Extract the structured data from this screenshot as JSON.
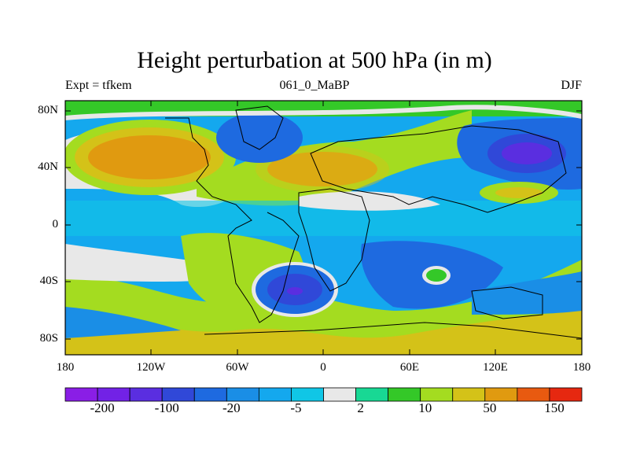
{
  "title": "Height perturbation at 500 hPa (in m)",
  "subtitle_left": "Expt = tfkem",
  "subtitle_center": "061_0_MaBP",
  "subtitle_right": "DJF",
  "lat_labels": [
    "80N",
    "40N",
    "0",
    "40S",
    "80S"
  ],
  "lon_labels": [
    "180",
    "120W",
    "60W",
    "0",
    "60E",
    "120E",
    "180"
  ],
  "colorbar": {
    "labels": [
      "-200",
      "-100",
      "-20",
      "-5",
      "2",
      "10",
      "50",
      "150"
    ],
    "colors": [
      "#8a1ee6",
      "#7222e6",
      "#5a2ee0",
      "#3048d8",
      "#1e6ae0",
      "#1a8ee6",
      "#14a8ee",
      "#10c6e6",
      "#e8e8e8",
      "#18d894",
      "#34c828",
      "#a4dc20",
      "#d4c218",
      "#e09a10",
      "#e85a10",
      "#e62810"
    ]
  },
  "chart_data": {
    "type": "heatmap",
    "title": "Height perturbation at 500 hPa (in m)",
    "xlabel": "",
    "ylabel": "",
    "xlim": [
      -180,
      180
    ],
    "ylim": [
      -90,
      90
    ],
    "x_ticks": [
      "180",
      "120W",
      "60W",
      "0",
      "60E",
      "120E",
      "180"
    ],
    "y_ticks": [
      "80N",
      "40N",
      "0",
      "40S",
      "80S"
    ],
    "colorbar_labels": [
      "-200",
      "-100",
      "-20",
      "-5",
      "2",
      "10",
      "50",
      "150"
    ],
    "features": [
      {
        "lon": -135,
        "lat": 48,
        "value_level": "50"
      },
      {
        "lon": -10,
        "lat": 38,
        "value_level": "50"
      },
      {
        "lon": 135,
        "lat": 48,
        "value_level": "-200"
      },
      {
        "lon": -20,
        "lat": -45,
        "value_level": "-100"
      },
      {
        "lon": 60,
        "lat": -40,
        "value_level": "-20"
      },
      {
        "lon": 100,
        "lat": 20,
        "value_level": "50"
      },
      {
        "lon": -20,
        "lat": -65,
        "value_level": "50"
      }
    ]
  }
}
